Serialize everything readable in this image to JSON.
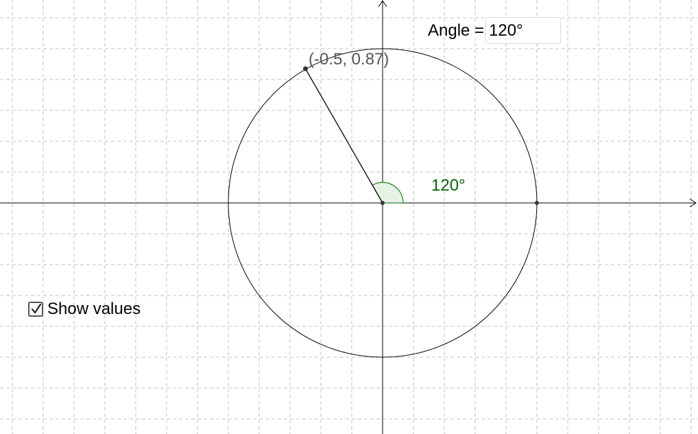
{
  "graph": {
    "point_label": "(-0.5, 0.87)",
    "angle_label": "120°",
    "angle_color": "#006400",
    "angle_fill": "#e6f2e6",
    "point": {
      "x": -0.5,
      "y": 0.87
    },
    "radius": 1,
    "angle_degrees": 120,
    "grid": true
  },
  "input": {
    "label": "Angle =",
    "value": "120°"
  },
  "checkbox": {
    "label": "Show values",
    "checked": true
  }
}
